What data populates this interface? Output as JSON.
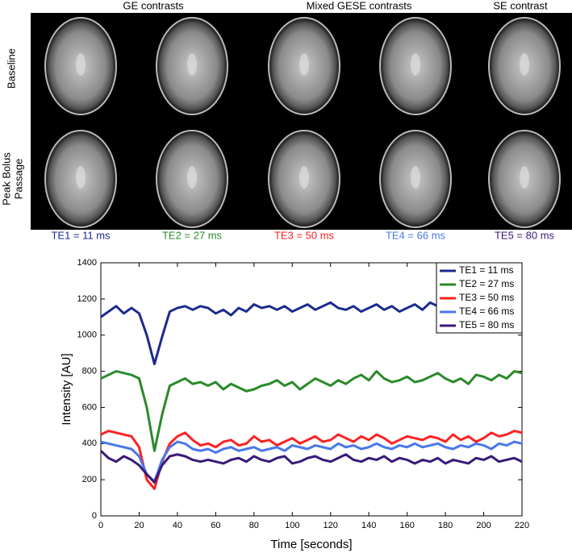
{
  "figure": {
    "column_headers": [
      "GE contrasts",
      "Mixed GESE contrasts",
      "SE contrast"
    ],
    "row_labels": [
      [
        "Baseline"
      ],
      [
        "Peak Bolus",
        "Passage"
      ]
    ]
  },
  "chart_data": {
    "type": "line",
    "xlabel": "Time [seconds]",
    "ylabel": "Intensity [AU]",
    "xlim": [
      0,
      220
    ],
    "ylim": [
      0,
      1400
    ],
    "xticks": [
      0,
      20,
      40,
      60,
      80,
      100,
      120,
      140,
      160,
      180,
      200,
      220
    ],
    "yticks": [
      0,
      200,
      400,
      600,
      800,
      1000,
      1200,
      1400
    ],
    "legend": "upper right",
    "x": [
      0,
      4,
      8,
      12,
      16,
      20,
      24,
      28,
      32,
      36,
      40,
      44,
      48,
      52,
      56,
      60,
      64,
      68,
      72,
      76,
      80,
      84,
      88,
      92,
      96,
      100,
      104,
      108,
      112,
      116,
      120,
      124,
      128,
      132,
      136,
      140,
      144,
      148,
      152,
      156,
      160,
      164,
      168,
      172,
      176,
      180,
      184,
      188,
      192,
      196,
      200,
      204,
      208,
      212,
      216,
      220
    ],
    "series": [
      {
        "name": "TE1 = 11 ms",
        "color": "#1c2a8c",
        "values": [
          1100,
          1130,
          1160,
          1120,
          1150,
          1120,
          1000,
          840,
          990,
          1130,
          1150,
          1160,
          1140,
          1160,
          1150,
          1120,
          1140,
          1110,
          1150,
          1130,
          1170,
          1150,
          1160,
          1140,
          1160,
          1130,
          1150,
          1170,
          1140,
          1160,
          1180,
          1150,
          1140,
          1160,
          1130,
          1150,
          1170,
          1140,
          1160,
          1130,
          1150,
          1170,
          1140,
          1180,
          1160,
          1150,
          1130,
          1160,
          1140,
          1170,
          1150,
          1130,
          1160,
          1170,
          1150,
          1160
        ]
      },
      {
        "name": "TE2 = 27 ms",
        "color": "#2a8a2a",
        "values": [
          760,
          780,
          800,
          790,
          780,
          760,
          600,
          360,
          560,
          720,
          740,
          760,
          730,
          740,
          720,
          740,
          700,
          730,
          710,
          690,
          700,
          720,
          730,
          750,
          720,
          740,
          700,
          730,
          760,
          740,
          720,
          750,
          730,
          760,
          780,
          750,
          800,
          760,
          740,
          750,
          770,
          740,
          750,
          770,
          790,
          760,
          740,
          760,
          730,
          780,
          770,
          750,
          780,
          760,
          800,
          790
        ]
      },
      {
        "name": "TE3 = 50 ms",
        "color": "#ff2020",
        "values": [
          450,
          470,
          460,
          450,
          440,
          380,
          200,
          150,
          300,
          400,
          440,
          460,
          420,
          390,
          400,
          380,
          410,
          420,
          390,
          400,
          440,
          410,
          420,
          390,
          410,
          430,
          400,
          420,
          440,
          410,
          420,
          450,
          430,
          410,
          440,
          420,
          450,
          430,
          400,
          420,
          440,
          430,
          420,
          440,
          430,
          410,
          450,
          420,
          440,
          410,
          430,
          460,
          440,
          450,
          470,
          460
        ]
      },
      {
        "name": "TE4 = 66 ms",
        "color": "#4a78e8",
        "values": [
          410,
          400,
          390,
          380,
          370,
          330,
          230,
          190,
          310,
          380,
          410,
          400,
          370,
          360,
          370,
          350,
          370,
          380,
          360,
          370,
          380,
          360,
          370,
          380,
          360,
          390,
          380,
          370,
          390,
          380,
          370,
          400,
          380,
          390,
          370,
          380,
          400,
          380,
          370,
          390,
          380,
          400,
          380,
          390,
          400,
          380,
          370,
          390,
          380,
          400,
          390,
          370,
          400,
          390,
          410,
          400
        ]
      },
      {
        "name": "TE5 = 80 ms",
        "color": "#3a1a7a",
        "values": [
          360,
          320,
          300,
          330,
          310,
          280,
          230,
          185,
          280,
          330,
          340,
          330,
          310,
          300,
          310,
          300,
          290,
          310,
          320,
          300,
          330,
          310,
          300,
          320,
          330,
          290,
          300,
          320,
          330,
          310,
          300,
          320,
          340,
          310,
          300,
          320,
          310,
          330,
          300,
          320,
          310,
          290,
          310,
          300,
          320,
          290,
          310,
          300,
          290,
          320,
          310,
          330,
          300,
          310,
          320,
          300
        ]
      }
    ]
  }
}
